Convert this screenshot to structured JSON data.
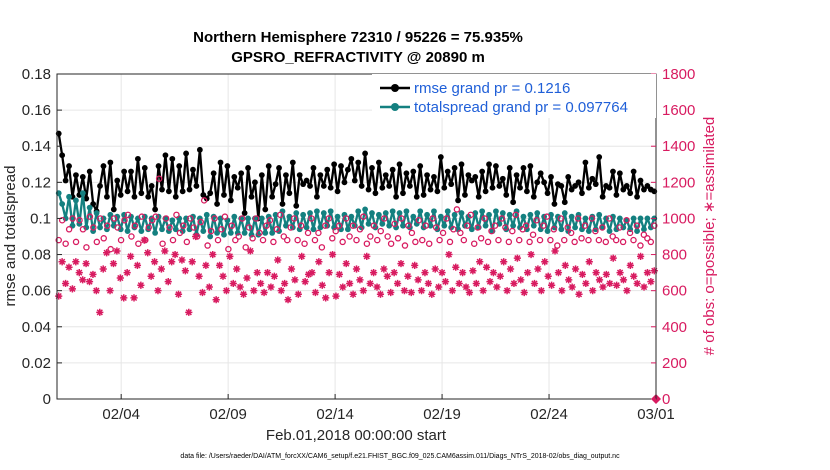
{
  "chart_data": {
    "type": "line",
    "title": "Northern Hemisphere 72310 / 95226 = 75.935%",
    "subtitle": "GPSRO_REFRACTIVITY @ 20890 m",
    "xlabel": "Feb.01,2018 00:00:00 start",
    "ylabel_left": "rmse and totalspread",
    "ylabel_right": "# of obs: o=possible; ∗=assimilated",
    "footnote": "data file: /Users/raeder/DAI/ATM_forcXX/CAM6_setup/f.e21.FHIST_BGC.f09_025.CAM6assim.011/Diags_NTrS_2018-02/obs_diag_output.nc",
    "x_ticks": [
      "02/04",
      "02/09",
      "02/14",
      "02/19",
      "02/24",
      "03/01"
    ],
    "x_tick_days": [
      3,
      8,
      13,
      18,
      23,
      28
    ],
    "xlim_days": [
      0,
      28
    ],
    "left_ylim": [
      0,
      0.18
    ],
    "left_ticks": [
      "0",
      "0.02",
      "0.04",
      "0.06",
      "0.08",
      "0.1",
      "0.12",
      "0.14",
      "0.16",
      "0.18"
    ],
    "right_ylim": [
      0,
      1800
    ],
    "right_ticks": [
      "0",
      "200",
      "400",
      "600",
      "800",
      "1000",
      "1200",
      "1400",
      "1600",
      "1800"
    ],
    "grid": true,
    "legend_position": "top-right",
    "series": [
      {
        "name": "rmse grand pr = 0.1216",
        "axis": "left",
        "color": "#000000",
        "marker": "filled-circle",
        "values": [
          0.147,
          0.135,
          0.121,
          0.129,
          0.112,
          0.124,
          0.113,
          0.123,
          0.111,
          0.126,
          0.108,
          0.104,
          0.118,
          0.129,
          0.112,
          0.131,
          0.105,
          0.121,
          0.113,
          0.126,
          0.115,
          0.126,
          0.112,
          0.133,
          0.114,
          0.128,
          0.112,
          0.118,
          0.105,
          0.129,
          0.116,
          0.135,
          0.115,
          0.133,
          0.112,
          0.129,
          0.115,
          0.136,
          0.116,
          0.127,
          0.118,
          0.138,
          0.113,
          0.111,
          0.114,
          0.125,
          0.108,
          0.131,
          0.113,
          0.129,
          0.11,
          0.123,
          0.117,
          0.125,
          0.103,
          0.128,
          0.112,
          0.12,
          0.1,
          0.124,
          0.105,
          0.129,
          0.112,
          0.119,
          0.128,
          0.108,
          0.124,
          0.114,
          0.131,
          0.107,
          0.124,
          0.119,
          0.121,
          0.118,
          0.128,
          0.112,
          0.124,
          0.118,
          0.127,
          0.117,
          0.13,
          0.115,
          0.129,
          0.12,
          0.127,
          0.133,
          0.121,
          0.131,
          0.118,
          0.136,
          0.116,
          0.128,
          0.114,
          0.131,
          0.117,
          0.124,
          0.118,
          0.127,
          0.112,
          0.13,
          0.114,
          0.125,
          0.118,
          0.126,
          0.112,
          0.129,
          0.113,
          0.124,
          0.116,
          0.123,
          0.115,
          0.134,
          0.117,
          0.126,
          0.119,
          0.128,
          0.11,
          0.13,
          0.113,
          0.124,
          0.121,
          0.123,
          0.112,
          0.126,
          0.115,
          0.13,
          0.117,
          0.129,
          0.118,
          0.122,
          0.113,
          0.128,
          0.109,
          0.124,
          0.117,
          0.128,
          0.115,
          0.129,
          0.112,
          0.12,
          0.125,
          0.12,
          0.114,
          0.123,
          0.108,
          0.119,
          0.118,
          0.109,
          0.123,
          0.116,
          0.118,
          0.12,
          0.114,
          0.131,
          0.117,
          0.122,
          0.119,
          0.134,
          0.112,
          0.118,
          0.117,
          0.126,
          0.113,
          0.125,
          0.116,
          0.118,
          0.114,
          0.126,
          0.112,
          0.121,
          0.116,
          0.118,
          0.116,
          0.115
        ]
      },
      {
        "name": "totalspread grand pr = 0.097764",
        "axis": "left",
        "color": "#148080",
        "marker": "filled-circle",
        "values": [
          0.114,
          0.108,
          0.1,
          0.112,
          0.096,
          0.11,
          0.097,
          0.114,
          0.095,
          0.106,
          0.093,
          0.103,
          0.095,
          0.1,
          0.094,
          0.102,
          0.096,
          0.101,
          0.094,
          0.102,
          0.093,
          0.101,
          0.095,
          0.1,
          0.093,
          0.101,
          0.094,
          0.1,
          0.092,
          0.101,
          0.094,
          0.1,
          0.093,
          0.099,
          0.094,
          0.1,
          0.093,
          0.1,
          0.094,
          0.101,
          0.091,
          0.1,
          0.093,
          0.102,
          0.09,
          0.101,
          0.092,
          0.1,
          0.091,
          0.099,
          0.092,
          0.101,
          0.092,
          0.1,
          0.092,
          0.1,
          0.091,
          0.1,
          0.091,
          0.1,
          0.092,
          0.101,
          0.092,
          0.102,
          0.093,
          0.104,
          0.096,
          0.101,
          0.095,
          0.103,
          0.094,
          0.102,
          0.095,
          0.103,
          0.094,
          0.104,
          0.095,
          0.103,
          0.096,
          0.104,
          0.095,
          0.101,
          0.094,
          0.102,
          0.094,
          0.101,
          0.096,
          0.104,
          0.095,
          0.105,
          0.097,
          0.103,
          0.095,
          0.102,
          0.097,
          0.103,
          0.096,
          0.104,
          0.095,
          0.103,
          0.096,
          0.104,
          0.095,
          0.101,
          0.097,
          0.104,
          0.095,
          0.102,
          0.096,
          0.104,
          0.094,
          0.101,
          0.096,
          0.104,
          0.095,
          0.102,
          0.094,
          0.103,
          0.096,
          0.101,
          0.094,
          0.103,
          0.095,
          0.104,
          0.096,
          0.102,
          0.093,
          0.104,
          0.097,
          0.103,
          0.094,
          0.102,
          0.096,
          0.104,
          0.095,
          0.101,
          0.094,
          0.102,
          0.096,
          0.103,
          0.094,
          0.101,
          0.093,
          0.102,
          0.095,
          0.101,
          0.094,
          0.103,
          0.093,
          0.101,
          0.095,
          0.102,
          0.094,
          0.1,
          0.093,
          0.101,
          0.094,
          0.102,
          0.095,
          0.1,
          0.093,
          0.101,
          0.094,
          0.1,
          0.095,
          0.099,
          0.094,
          0.1,
          0.093,
          0.1,
          0.094,
          0.1,
          0.095,
          0.1
        ]
      },
      {
        "name": "possible",
        "axis": "right",
        "color": "#d81b60",
        "marker": "open-circle",
        "values": [
          880,
          990,
          860,
          940,
          1000,
          870,
          990,
          940,
          840,
          1010,
          950,
          870,
          1000,
          890,
          960,
          830,
          1000,
          950,
          880,
          990,
          1020,
          900,
          960,
          860,
          1010,
          880,
          950,
          990,
          1010,
          1220,
          860,
          1000,
          950,
          880,
          1020,
          920,
          960,
          870,
          1000,
          950,
          900,
          980,
          1100,
          850,
          930,
          1000,
          880,
          940,
          1010,
          830,
          960,
          880,
          900,
          1000,
          840,
          950,
          890,
          1000,
          920,
          880,
          960,
          990,
          870,
          940,
          1020,
          900,
          880,
          950,
          1000,
          880,
          960,
          860,
          920,
          1000,
          880,
          920,
          840,
          960,
          1000,
          890,
          930,
          960,
          870,
          1000,
          900,
          960,
          880,
          940,
          1010,
          860,
          900,
          960,
          880,
          930,
          1000,
          900,
          860,
          970,
          890,
          1000,
          850,
          960,
          920,
          870,
          990,
          880,
          960,
          860,
          1000,
          950,
          880,
          920,
          1000,
          870,
          940,
          1050,
          920,
          880,
          960,
          1020,
          860,
          950,
          890,
          1000,
          870,
          930,
          960,
          880,
          1000,
          950,
          870,
          930,
          1020,
          880,
          940,
          960,
          870,
          910,
          990,
          880,
          960,
          1010,
          880,
          940,
          850,
          1000,
          880,
          950,
          920,
          870,
          1000,
          890,
          960,
          880,
          1000,
          930,
          880,
          950,
          870,
          1000,
          900,
          880,
          950,
          870,
          990,
          920,
          880,
          960,
          850,
          910,
          890,
          870,
          960
        ]
      },
      {
        "name": "assimilated",
        "axis": "right",
        "color": "#d81b60",
        "marker": "asterisk",
        "values": [
          570,
          760,
          640,
          730,
          610,
          760,
          700,
          660,
          750,
          650,
          690,
          600,
          480,
          720,
          810,
          600,
          750,
          820,
          670,
          560,
          700,
          790,
          560,
          740,
          630,
          880,
          810,
          680,
          760,
          600,
          720,
          820,
          650,
          760,
          800,
          580,
          770,
          710,
          480,
          760,
          900,
          680,
          590,
          740,
          620,
          800,
          550,
          740,
          680,
          600,
          790,
          640,
          720,
          620,
          580,
          670,
          820,
          600,
          700,
          640,
          590,
          700,
          620,
          680,
          770,
          600,
          640,
          550,
          720,
          660,
          580,
          790,
          650,
          690,
          700,
          590,
          760,
          630,
          560,
          700,
          800,
          570,
          690,
          620,
          750,
          640,
          580,
          720,
          660,
          600,
          790,
          640,
          700,
          620,
          580,
          720,
          680,
          590,
          700,
          640,
          750,
          600,
          680,
          590,
          740,
          660,
          600,
          700,
          640,
          580,
          720,
          620,
          700,
          650,
          800,
          600,
          730,
          640,
          700,
          620,
          590,
          710,
          640,
          760,
          600,
          730,
          650,
          700,
          620,
          680,
          760,
          600,
          720,
          640,
          780,
          660,
          590,
          700,
          800,
          640,
          720,
          600,
          760,
          680,
          630,
          820,
          700,
          600,
          740,
          660,
          620,
          720,
          580,
          690,
          640,
          760,
          600,
          700,
          660,
          620,
          690,
          640,
          780,
          630,
          700,
          660,
          600,
          740,
          680,
          640,
          790,
          620,
          700,
          650,
          710
        ]
      }
    ],
    "markers": [
      {
        "name": "zero-count",
        "axis": "right",
        "x_day": 28,
        "y": 0,
        "color": "#d81b60"
      }
    ]
  }
}
